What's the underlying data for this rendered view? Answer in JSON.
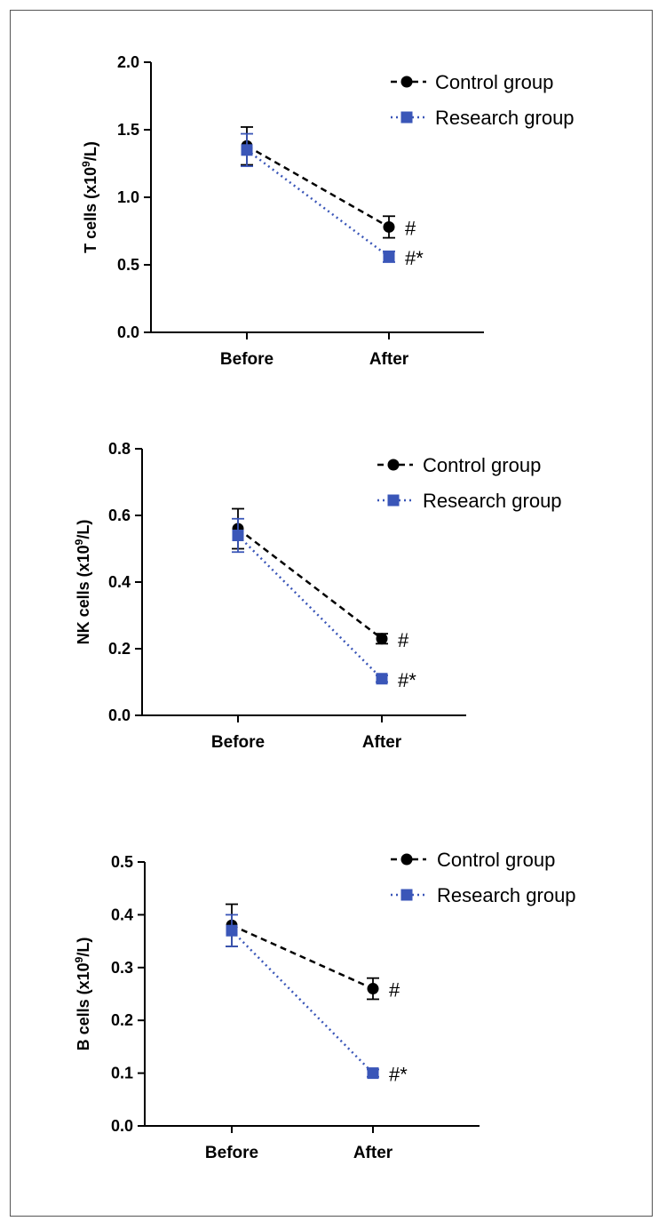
{
  "colors": {
    "control": "#000000",
    "research": "#3a56b8"
  },
  "chart_data": [
    {
      "type": "line",
      "title": "",
      "ylabel_main": "T cells (x10",
      "ylabel_sup": "9",
      "ylabel_tail": "/L)",
      "categories": [
        "Before",
        "After"
      ],
      "ylim": [
        0,
        2.0
      ],
      "yticks": [
        0.0,
        0.5,
        1.0,
        1.5,
        2.0
      ],
      "ytick_labels": [
        "0.0",
        "0.5",
        "1.0",
        "1.5",
        "2.0"
      ],
      "series": [
        {
          "name": "Control group",
          "values": [
            1.38,
            0.78
          ],
          "errors": [
            0.14,
            0.08
          ],
          "marker": "circle",
          "annotations": [
            "",
            "#"
          ]
        },
        {
          "name": "Research group",
          "values": [
            1.35,
            0.56
          ],
          "errors": [
            0.12,
            0.04
          ],
          "marker": "square",
          "annotations": [
            "",
            "#*"
          ]
        }
      ]
    },
    {
      "type": "line",
      "title": "",
      "ylabel_main": "NK cells (x10",
      "ylabel_sup": "9",
      "ylabel_tail": "/L)",
      "categories": [
        "Before",
        "After"
      ],
      "ylim": [
        0,
        0.8
      ],
      "yticks": [
        0.0,
        0.2,
        0.4,
        0.6,
        0.8
      ],
      "ytick_labels": [
        "0.0",
        "0.2",
        "0.4",
        "0.6",
        "0.8"
      ],
      "series": [
        {
          "name": "Control group",
          "values": [
            0.56,
            0.23
          ],
          "errors": [
            0.06,
            0.015
          ],
          "marker": "circle",
          "annotations": [
            "",
            "#"
          ]
        },
        {
          "name": "Research group",
          "values": [
            0.54,
            0.11
          ],
          "errors": [
            0.05,
            0.01
          ],
          "marker": "square",
          "annotations": [
            "",
            "#*"
          ]
        }
      ]
    },
    {
      "type": "line",
      "title": "",
      "ylabel_main": "B cells (x10",
      "ylabel_sup": "9",
      "ylabel_tail": "/L)",
      "categories": [
        "Before",
        "After"
      ],
      "ylim": [
        0,
        0.5
      ],
      "yticks": [
        0.0,
        0.1,
        0.2,
        0.3,
        0.4,
        0.5
      ],
      "ytick_labels": [
        "0.0",
        "0.1",
        "0.2",
        "0.3",
        "0.4",
        "0.5"
      ],
      "series": [
        {
          "name": "Control group",
          "values": [
            0.38,
            0.26
          ],
          "errors": [
            0.04,
            0.02
          ],
          "marker": "circle",
          "annotations": [
            "",
            "#"
          ]
        },
        {
          "name": "Research group",
          "values": [
            0.37,
            0.1
          ],
          "errors": [
            0.03,
            0.007
          ],
          "marker": "square",
          "annotations": [
            "",
            "#*"
          ]
        }
      ]
    }
  ]
}
